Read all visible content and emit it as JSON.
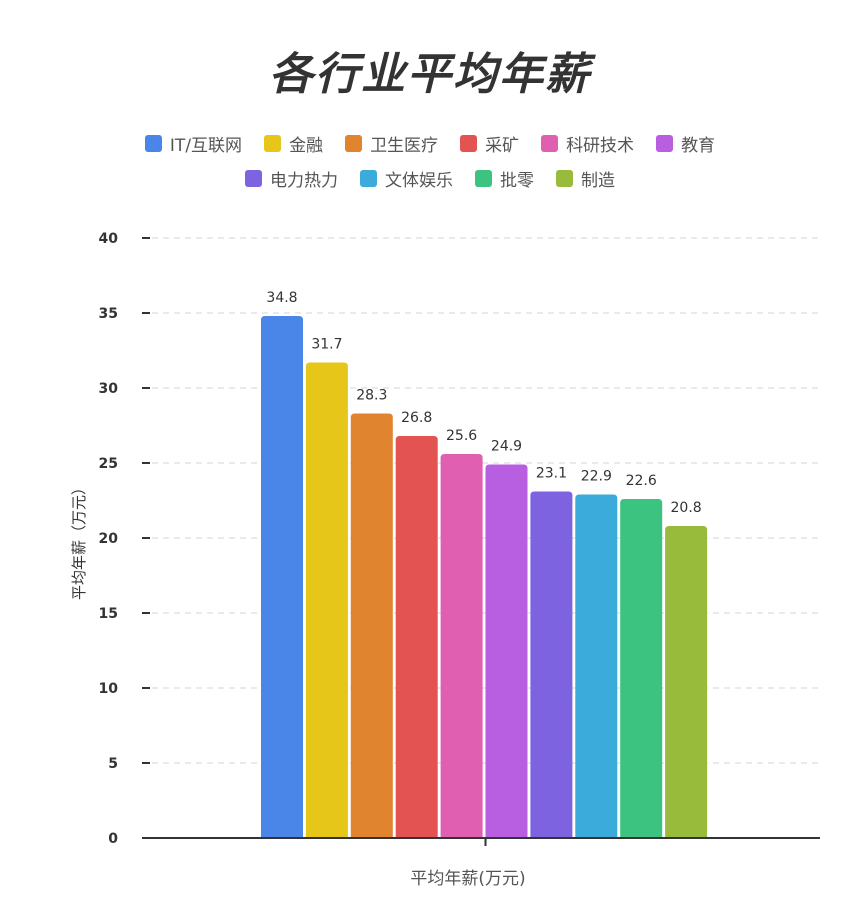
{
  "chart_data": {
    "type": "bar",
    "title": "各行业平均年薪",
    "xlabel": "平均年薪(万元)",
    "ylabel": "平均年薪（万元）",
    "ylim": [
      0,
      40
    ],
    "yticks": [
      "0",
      "5",
      "10",
      "15",
      "20",
      "25",
      "30",
      "35",
      "40"
    ],
    "grid": true,
    "legend_position": "top",
    "categories": [
      "IT/互联网",
      "金融",
      "卫生医疗",
      "采矿",
      "科研技术",
      "教育",
      "电力热力",
      "文体娱乐",
      "批零",
      "制造"
    ],
    "values": [
      34.8,
      31.7,
      28.3,
      26.8,
      25.6,
      24.9,
      23.1,
      22.9,
      22.6,
      20.8
    ],
    "value_labels": [
      "34.8",
      "31.7",
      "28.3",
      "26.8",
      "25.6",
      "24.9",
      "23.1",
      "22.9",
      "22.6",
      "20.8"
    ],
    "colors": [
      "#4a86e8",
      "#e6c619",
      "#e0842f",
      "#e25351",
      "#e05fb1",
      "#b85ee0",
      "#7e63e0",
      "#3aabdb",
      "#3cc37f",
      "#99bb3c"
    ]
  }
}
